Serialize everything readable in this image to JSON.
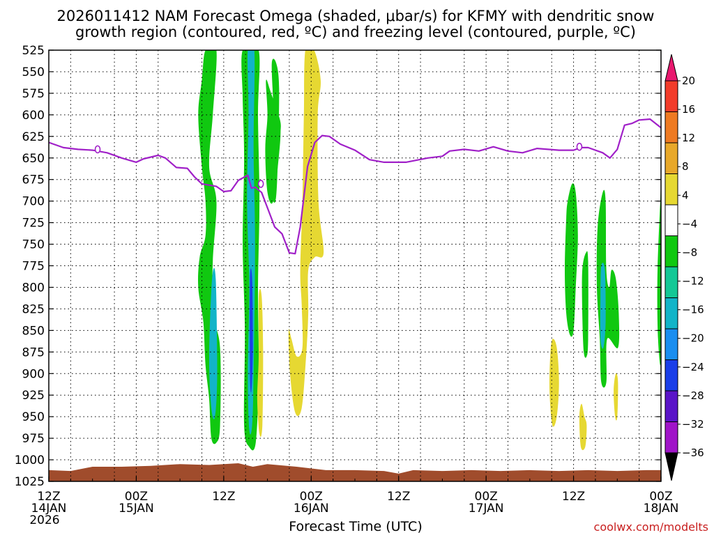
{
  "chart_data": {
    "type": "heatmap",
    "title": [
      "2026011412 NAM Forecast Omega (shaded, μbar/s) for KFMY with dendritic snow",
      "growth region (contoured, red, ºC) and freezing level (contoured, purple, ºC)"
    ],
    "xlabel": "Forecast Time (UTC)",
    "ylabel": "",
    "x_ticks": [
      {
        "hour": 0,
        "label": [
          "12Z",
          "14JAN",
          "2026"
        ]
      },
      {
        "hour": 12,
        "label": [
          "00Z",
          "15JAN"
        ]
      },
      {
        "hour": 24,
        "label": [
          "12Z"
        ]
      },
      {
        "hour": 36,
        "label": [
          "00Z",
          "16JAN"
        ]
      },
      {
        "hour": 48,
        "label": [
          "12Z"
        ]
      },
      {
        "hour": 60,
        "label": [
          "00Z",
          "17JAN"
        ]
      },
      {
        "hour": 72,
        "label": [
          "12Z"
        ]
      },
      {
        "hour": 84,
        "label": [
          "00Z",
          "18JAN"
        ]
      }
    ],
    "x_range": [
      0,
      84
    ],
    "y_range": [
      525,
      1025
    ],
    "y_ticks": [
      525,
      550,
      575,
      600,
      625,
      650,
      675,
      700,
      725,
      750,
      775,
      800,
      825,
      850,
      875,
      900,
      925,
      950,
      975,
      1000,
      1025
    ],
    "colorbar": {
      "labels": [
        "20",
        "16",
        "12",
        "8",
        "4",
        "−4",
        "−8",
        "−12",
        "−16",
        "−20",
        "−24",
        "−28",
        "−32",
        "−36"
      ],
      "bins": [
        {
          "from": 20,
          "to": 24,
          "color": "#e8186e"
        },
        {
          "from": 16,
          "to": 20,
          "color": "#f23c2a"
        },
        {
          "from": 12,
          "to": 16,
          "color": "#ee7a22"
        },
        {
          "from": 8,
          "to": 12,
          "color": "#e8a82a"
        },
        {
          "from": 4,
          "to": 8,
          "color": "#e6d832"
        },
        {
          "from": -4,
          "to": 4,
          "color": "#ffffff"
        },
        {
          "from": -8,
          "to": -4,
          "color": "#10c810"
        },
        {
          "from": -12,
          "to": -8,
          "color": "#14c896"
        },
        {
          "from": -16,
          "to": -12,
          "color": "#12b4c8"
        },
        {
          "from": -20,
          "to": -16,
          "color": "#1a8ef0"
        },
        {
          "from": -24,
          "to": -20,
          "color": "#1a3ee8"
        },
        {
          "from": -28,
          "to": -24,
          "color": "#5a14c8"
        },
        {
          "from": -32,
          "to": -28,
          "color": "#a014c8"
        },
        {
          "from": -36,
          "to": -32,
          "color": "#a8a8a8"
        }
      ]
    },
    "omega_regions": [
      {
        "value": -6,
        "color": "#10c810",
        "points": [
          [
            21.5,
            525
          ],
          [
            23,
            525
          ],
          [
            22.5,
            600
          ],
          [
            22,
            660
          ],
          [
            23,
            700
          ],
          [
            22.5,
            770
          ],
          [
            22.5,
            830
          ],
          [
            23.5,
            870
          ],
          [
            23.5,
            960
          ],
          [
            23,
            980
          ],
          [
            22.3,
            975
          ],
          [
            22,
            930
          ],
          [
            21.5,
            890
          ],
          [
            21.2,
            840
          ],
          [
            20.5,
            800
          ],
          [
            20.7,
            765
          ],
          [
            21.5,
            740
          ],
          [
            21.5,
            700
          ],
          [
            21,
            660
          ],
          [
            20.5,
            600
          ],
          [
            21,
            560
          ]
        ]
      },
      {
        "value": -13,
        "color": "#12b4c8",
        "points": [
          [
            22.4,
            790
          ],
          [
            22.9,
            790
          ],
          [
            23.1,
            900
          ],
          [
            22.8,
            950
          ],
          [
            22.3,
            940
          ],
          [
            22,
            880
          ]
        ]
      },
      {
        "value": -6,
        "color": "#10c810",
        "points": [
          [
            26.6,
            525
          ],
          [
            28.8,
            525
          ],
          [
            28.7,
            600
          ],
          [
            28.9,
            700
          ],
          [
            28.7,
            800
          ],
          [
            28.8,
            900
          ],
          [
            28.4,
            980
          ],
          [
            27.5,
            985
          ],
          [
            26.8,
            960
          ],
          [
            26.9,
            850
          ],
          [
            26.6,
            750
          ],
          [
            26.8,
            650
          ],
          [
            26.6,
            580
          ]
        ]
      },
      {
        "value": -13,
        "color": "#12b4c8",
        "points": [
          [
            27.3,
            525
          ],
          [
            28.2,
            525
          ],
          [
            28.1,
            640
          ],
          [
            28.3,
            750
          ],
          [
            28.1,
            900
          ],
          [
            27.9,
            960
          ],
          [
            27.5,
            965
          ],
          [
            27.3,
            900
          ],
          [
            27.5,
            800
          ],
          [
            27.2,
            700
          ],
          [
            27.4,
            600
          ]
        ]
      },
      {
        "value": -22,
        "color": "#1a3ee8",
        "points": [
          [
            27.6,
            790
          ],
          [
            27.9,
            790
          ],
          [
            28,
            870
          ],
          [
            27.8,
            920
          ],
          [
            27.6,
            900
          ]
        ]
      },
      {
        "value": -6,
        "color": "#10c810",
        "points": [
          [
            29.8,
            560
          ],
          [
            30.5,
            575
          ],
          [
            31.7,
            605
          ],
          [
            31.8,
            620
          ],
          [
            31.6,
            645
          ],
          [
            30.8,
            700
          ],
          [
            30,
            690
          ],
          [
            29.7,
            640
          ],
          [
            30,
            600
          ]
        ]
      },
      {
        "value": -6,
        "color": "#10c810",
        "points": [
          [
            30.6,
            540
          ],
          [
            31.2,
            540
          ],
          [
            31.6,
            570
          ],
          [
            31.4,
            660
          ],
          [
            31.1,
            700
          ],
          [
            30.6,
            690
          ],
          [
            30.9,
            640
          ],
          [
            30.8,
            590
          ]
        ]
      },
      {
        "value": 5,
        "color": "#e6d832",
        "points": [
          [
            35.2,
            525
          ],
          [
            36.4,
            525
          ],
          [
            37.3,
            560
          ],
          [
            36.9,
            600
          ],
          [
            37,
            700
          ],
          [
            37.7,
            760
          ],
          [
            36.5,
            765
          ],
          [
            35.6,
            780
          ],
          [
            35.6,
            830
          ],
          [
            35.3,
            880
          ],
          [
            34.7,
            940
          ],
          [
            33.8,
            945
          ],
          [
            33.1,
            900
          ],
          [
            32.9,
            850
          ],
          [
            33.3,
            860
          ],
          [
            34,
            880
          ],
          [
            34.8,
            870
          ],
          [
            34.7,
            820
          ],
          [
            34.5,
            780
          ],
          [
            34.8,
            700
          ],
          [
            35,
            600
          ]
        ]
      },
      {
        "value": 5,
        "color": "#e6d832",
        "points": [
          [
            28.8,
            810
          ],
          [
            29.2,
            810
          ],
          [
            29.4,
            870
          ],
          [
            29.3,
            960
          ],
          [
            28.9,
            970
          ],
          [
            28.6,
            930
          ],
          [
            28.8,
            880
          ]
        ]
      },
      {
        "value": -6,
        "color": "#10c810",
        "points": [
          [
            71.8,
            680
          ],
          [
            72.3,
            690
          ],
          [
            72.6,
            740
          ],
          [
            72.3,
            800
          ],
          [
            72,
            850
          ],
          [
            71.5,
            855
          ],
          [
            71,
            830
          ],
          [
            70.8,
            780
          ],
          [
            71,
            720
          ],
          [
            71.2,
            700
          ]
        ]
      },
      {
        "value": -6,
        "color": "#10c810",
        "points": [
          [
            76,
            690
          ],
          [
            76.4,
            700
          ],
          [
            76.5,
            780
          ],
          [
            76.9,
            800
          ],
          [
            77.2,
            780
          ],
          [
            77.8,
            790
          ],
          [
            78.2,
            830
          ],
          [
            78.1,
            870
          ],
          [
            76.6,
            860
          ],
          [
            76.5,
            910
          ],
          [
            75.8,
            910
          ],
          [
            75.6,
            860
          ],
          [
            75.2,
            800
          ],
          [
            75.3,
            730
          ]
        ]
      },
      {
        "value": -6,
        "color": "#10c810",
        "points": [
          [
            73.7,
            760
          ],
          [
            74,
            770
          ],
          [
            74,
            860
          ],
          [
            73.8,
            880
          ],
          [
            73.4,
            875
          ],
          [
            73.2,
            830
          ],
          [
            73.2,
            780
          ]
        ]
      },
      {
        "value": -13,
        "color": "#12b4c8",
        "points": [
          [
            75.8,
            775
          ],
          [
            76.3,
            780
          ],
          [
            76.4,
            840
          ],
          [
            76.1,
            870
          ],
          [
            75.7,
            860
          ],
          [
            75.7,
            810
          ]
        ]
      },
      {
        "value": -6,
        "color": "#10c810",
        "points": [
          [
            83.9,
            700
          ],
          [
            84,
            700
          ],
          [
            84,
            880
          ],
          [
            83.6,
            860
          ],
          [
            83.5,
            790
          ]
        ]
      },
      {
        "value": 5,
        "color": "#e6d832",
        "points": [
          [
            69.1,
            860
          ],
          [
            69.7,
            870
          ],
          [
            70,
            910
          ],
          [
            69.7,
            950
          ],
          [
            69.1,
            960
          ],
          [
            68.7,
            920
          ],
          [
            68.8,
            880
          ]
        ]
      },
      {
        "value": 5,
        "color": "#e6d832",
        "points": [
          [
            73.1,
            935
          ],
          [
            73.5,
            950
          ],
          [
            73.8,
            960
          ],
          [
            73.6,
            985
          ],
          [
            73,
            985
          ],
          [
            72.8,
            950
          ]
        ]
      },
      {
        "value": 5,
        "color": "#e6d832",
        "points": [
          [
            77.8,
            900
          ],
          [
            78.1,
            910
          ],
          [
            78,
            950
          ],
          [
            77.7,
            950
          ],
          [
            77.5,
            920
          ]
        ]
      }
    ],
    "freezing_level": {
      "label": "0",
      "label_points": [
        [
          6.7,
          640
        ],
        [
          29.1,
          680
        ],
        [
          72.8,
          637
        ]
      ],
      "points": [
        [
          0,
          632
        ],
        [
          2,
          638
        ],
        [
          4,
          640
        ],
        [
          6,
          641
        ],
        [
          8,
          644
        ],
        [
          10,
          650
        ],
        [
          12,
          655
        ],
        [
          13,
          651
        ],
        [
          15,
          647
        ],
        [
          16,
          650
        ],
        [
          17.5,
          661
        ],
        [
          19,
          662
        ],
        [
          20,
          672
        ],
        [
          21,
          680
        ],
        [
          23,
          683
        ],
        [
          24,
          689
        ],
        [
          25,
          688
        ],
        [
          26,
          676
        ],
        [
          27.3,
          670
        ],
        [
          27.8,
          685
        ],
        [
          28.3,
          684
        ],
        [
          29.2,
          690
        ],
        [
          30.1,
          710
        ],
        [
          31,
          730
        ],
        [
          32,
          738
        ],
        [
          33,
          760
        ],
        [
          33.8,
          761
        ],
        [
          34.5,
          730
        ],
        [
          35.5,
          660
        ],
        [
          36.5,
          632
        ],
        [
          37.5,
          624
        ],
        [
          38.5,
          625
        ],
        [
          40,
          634
        ],
        [
          42,
          641
        ],
        [
          44,
          652
        ],
        [
          46,
          655
        ],
        [
          49,
          655
        ],
        [
          52,
          650
        ],
        [
          54,
          648
        ],
        [
          55,
          642
        ],
        [
          57,
          640
        ],
        [
          59,
          642
        ],
        [
          61,
          637
        ],
        [
          63,
          642
        ],
        [
          65,
          644
        ],
        [
          67,
          639
        ],
        [
          70,
          641
        ],
        [
          72,
          641
        ],
        [
          73,
          638
        ],
        [
          74,
          638
        ],
        [
          76,
          644
        ],
        [
          77,
          650
        ],
        [
          78,
          640
        ],
        [
          79,
          612
        ],
        [
          80,
          610
        ],
        [
          81,
          606
        ],
        [
          82.5,
          605
        ],
        [
          84,
          615
        ]
      ]
    },
    "terrain": {
      "color": "#a04c2c",
      "top_points": [
        [
          0,
          1012
        ],
        [
          3,
          1013
        ],
        [
          6,
          1008
        ],
        [
          10,
          1008
        ],
        [
          14,
          1007
        ],
        [
          18,
          1005
        ],
        [
          22,
          1006
        ],
        [
          26,
          1004
        ],
        [
          28,
          1008
        ],
        [
          30,
          1005
        ],
        [
          34,
          1008
        ],
        [
          38,
          1012
        ],
        [
          42,
          1012
        ],
        [
          46,
          1013
        ],
        [
          48,
          1016
        ],
        [
          50,
          1012
        ],
        [
          54,
          1013
        ],
        [
          58,
          1012
        ],
        [
          62,
          1013
        ],
        [
          66,
          1012
        ],
        [
          70,
          1013
        ],
        [
          74,
          1012
        ],
        [
          78,
          1013
        ],
        [
          82,
          1012
        ],
        [
          84,
          1012
        ]
      ]
    }
  },
  "credit": "coolwx.com/modelts"
}
